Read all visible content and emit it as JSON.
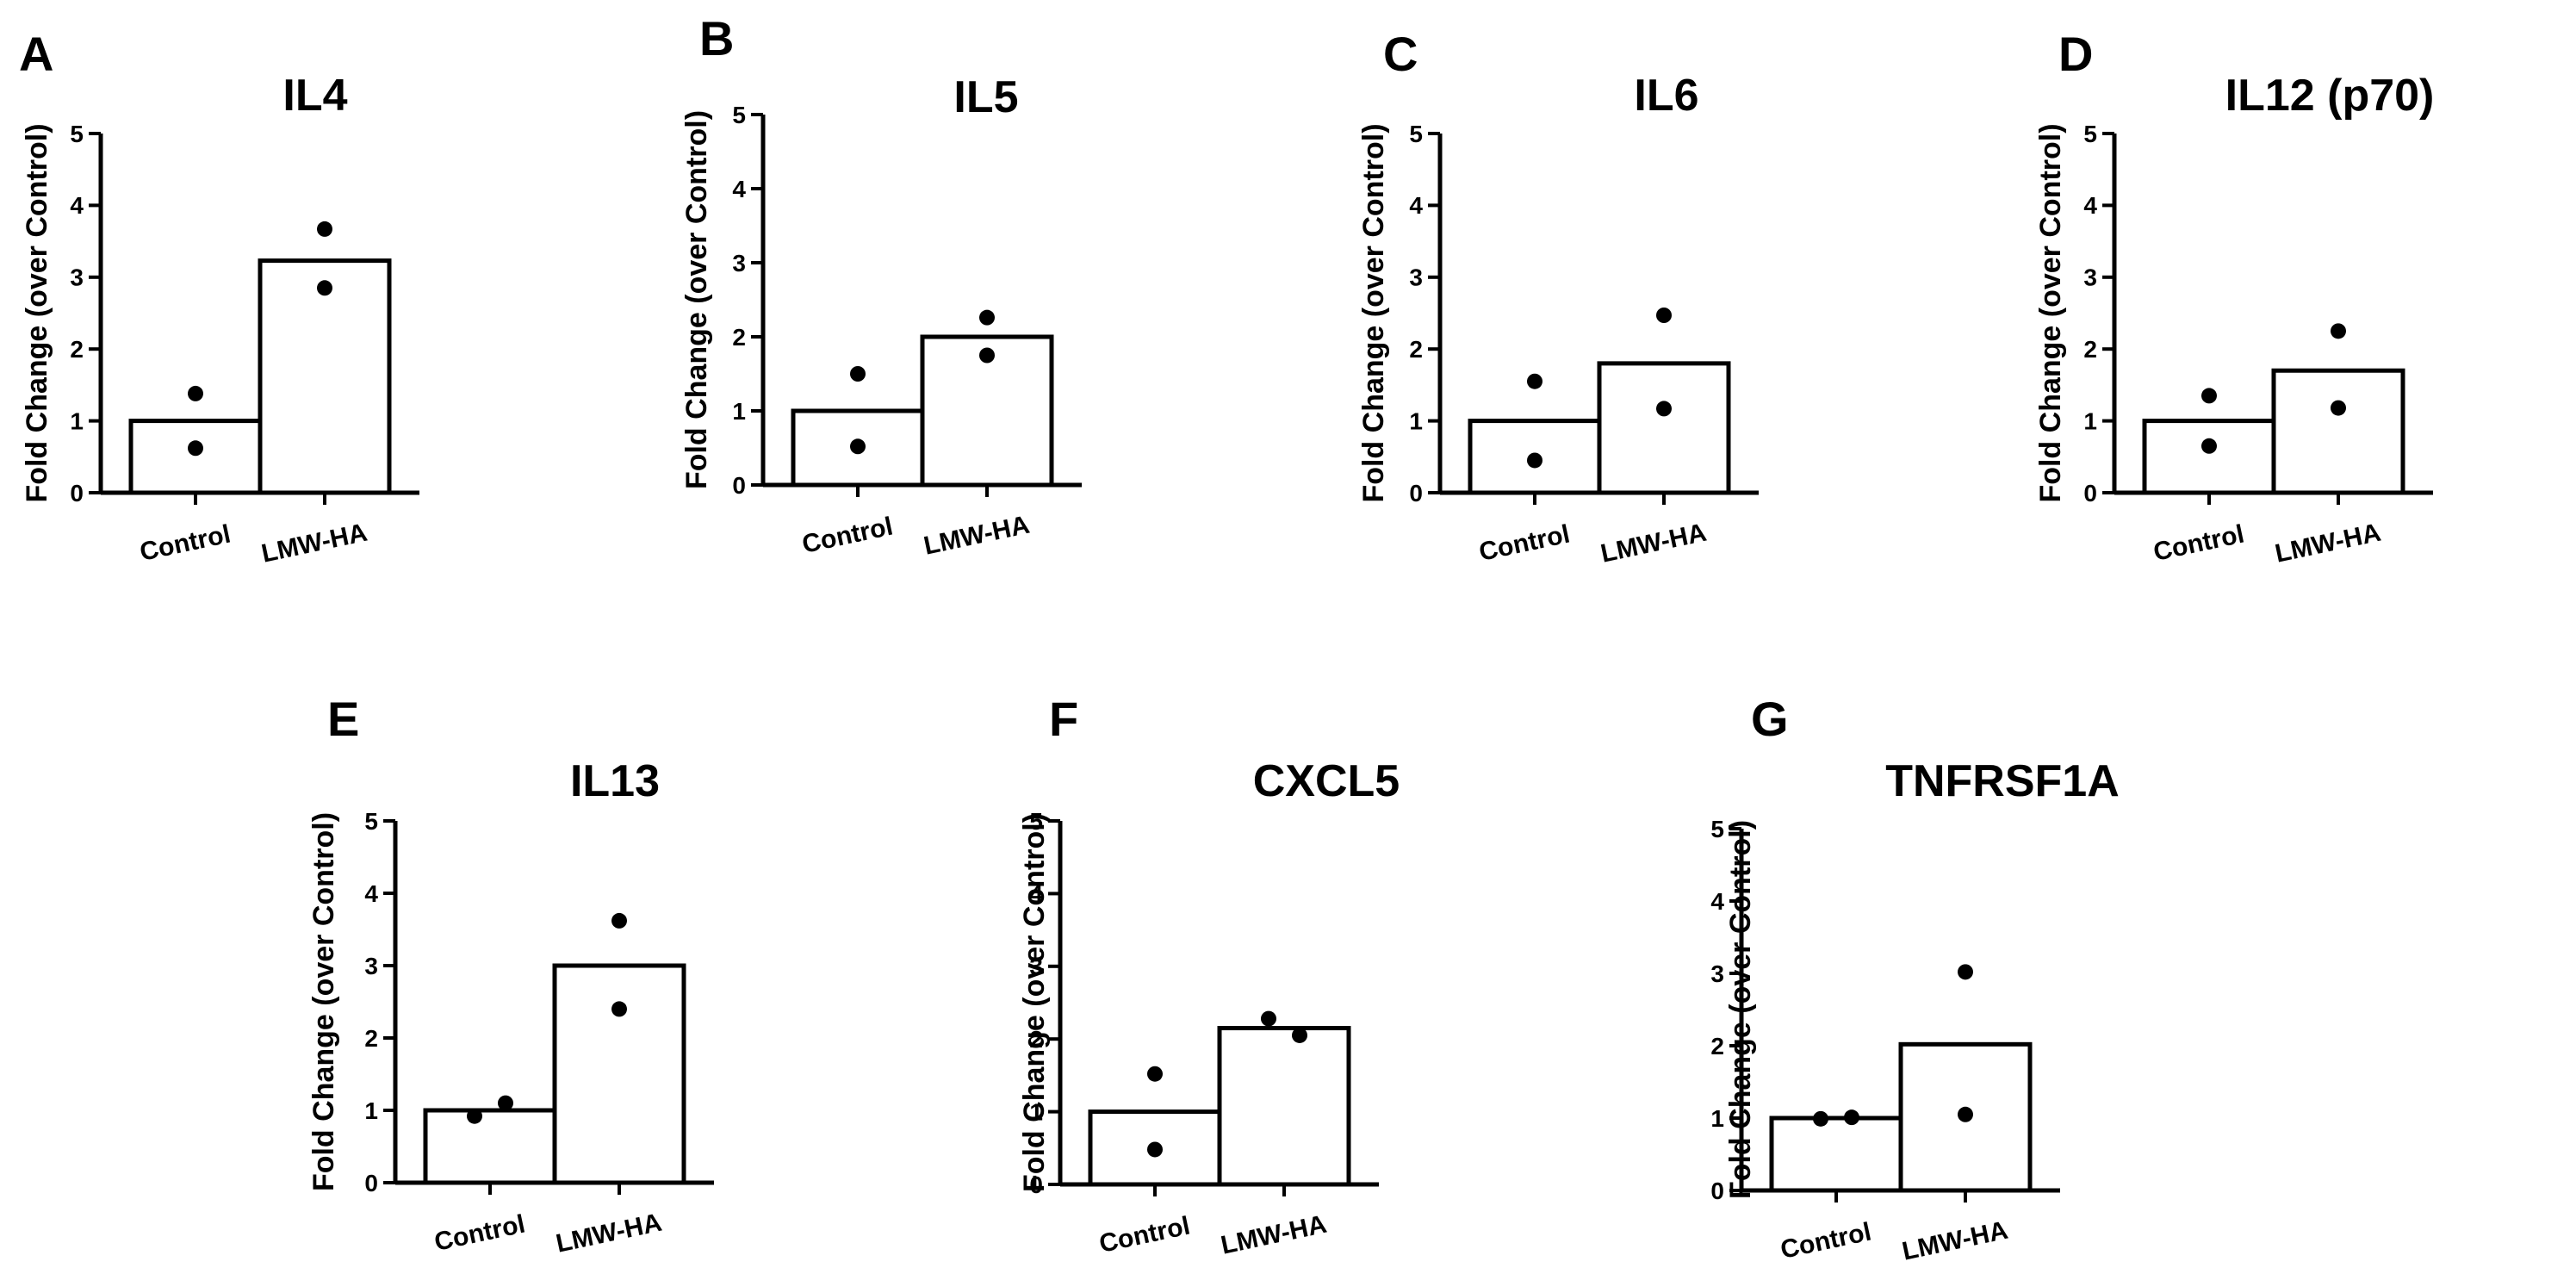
{
  "chart_data": [
    {
      "panel": "A",
      "type": "bar",
      "title": "IL4",
      "ylabel": "Fold Change (over Control)",
      "xlabel": "",
      "categories": [
        "Control",
        "LMW-HA"
      ],
      "values": [
        1.0,
        3.23
      ],
      "points": [
        [
          1.38,
          0.62
        ],
        [
          3.67,
          2.85
        ]
      ],
      "ylim": [
        0,
        5
      ],
      "yticks": [
        "0",
        "1",
        "2",
        "3",
        "4",
        "5"
      ]
    },
    {
      "panel": "B",
      "type": "bar",
      "title": "IL5",
      "ylabel": "Fold Change (over Control)",
      "xlabel": "",
      "categories": [
        "Control",
        "LMW-HA"
      ],
      "values": [
        1.0,
        2.0
      ],
      "points": [
        [
          1.5,
          0.52
        ],
        [
          2.26,
          1.75
        ]
      ],
      "ylim": [
        0,
        5
      ],
      "yticks": [
        "0",
        "1",
        "2",
        "3",
        "4",
        "5"
      ]
    },
    {
      "panel": "C",
      "type": "bar",
      "title": "IL6",
      "ylabel": "Fold Change (over Control)",
      "xlabel": "",
      "categories": [
        "Control",
        "LMW-HA"
      ],
      "values": [
        1.0,
        1.8
      ],
      "points": [
        [
          1.55,
          0.45
        ],
        [
          2.47,
          1.17
        ]
      ],
      "ylim": [
        0,
        5
      ],
      "yticks": [
        "0",
        "1",
        "2",
        "3",
        "4",
        "5"
      ]
    },
    {
      "panel": "D",
      "type": "bar",
      "title": "IL12 (p70)",
      "ylabel": "Fold Change (over Control)",
      "xlabel": "",
      "categories": [
        "Control",
        "LMW-HA"
      ],
      "values": [
        1.0,
        1.7
      ],
      "points": [
        [
          1.35,
          0.65
        ],
        [
          2.25,
          1.18
        ]
      ],
      "ylim": [
        0,
        5
      ],
      "yticks": [
        "0",
        "1",
        "2",
        "3",
        "4",
        "5"
      ]
    },
    {
      "panel": "E",
      "type": "bar",
      "title": "IL13",
      "ylabel": "Fold Change (over Control)",
      "xlabel": "",
      "categories": [
        "Control",
        "LMW-HA"
      ],
      "values": [
        1.0,
        3.0
      ],
      "points": [
        [
          0.92,
          1.1
        ],
        [
          3.62,
          2.4
        ]
      ],
      "ylim": [
        0,
        5
      ],
      "yticks": [
        "0",
        "1",
        "2",
        "3",
        "4",
        "5"
      ]
    },
    {
      "panel": "F",
      "type": "bar",
      "title": "CXCL5",
      "ylabel": "Fold Change (over Control)",
      "xlabel": "",
      "categories": [
        "Control",
        "LMW-HA"
      ],
      "values": [
        1.0,
        2.15
      ],
      "points": [
        [
          1.52,
          0.48
        ],
        [
          2.28,
          2.05
        ]
      ],
      "ylim": [
        0,
        5
      ],
      "yticks": [
        "0",
        "1",
        "2",
        "3",
        "4",
        "5"
      ]
    },
    {
      "panel": "G",
      "type": "bar",
      "title": "TNFRSF1A",
      "ylabel": "Fold Change (over Control)",
      "xlabel": "",
      "categories": [
        "Control",
        "LMW-HA"
      ],
      "values": [
        1.0,
        2.02
      ],
      "points": [
        [
          0.99,
          1.01
        ],
        [
          3.02,
          1.05
        ]
      ],
      "ylim": [
        0,
        5
      ],
      "yticks": [
        "0",
        "1",
        "2",
        "3",
        "4",
        "5"
      ]
    }
  ]
}
